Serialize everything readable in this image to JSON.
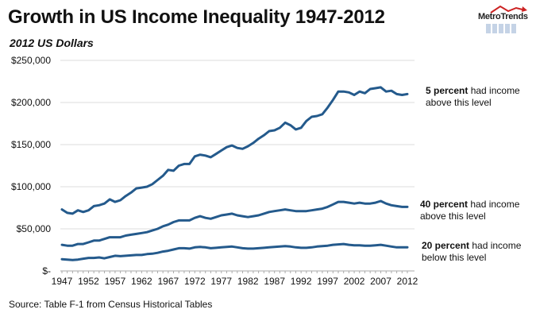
{
  "header": {
    "title": "Growth in US Income Inequality 1947-2012",
    "subtitle": "2012 US Dollars",
    "logo_text": "MetroTrends"
  },
  "footer": {
    "source": "Source: Table F-1 from Census Historical Tables"
  },
  "colors": {
    "series": "#245a8c",
    "grid": "#dddddd",
    "logo_arrow": "#cc2222",
    "logo_bars": "#c5d3e6"
  },
  "annotations": [
    {
      "bold": "5 percent",
      "rest": " had income",
      "line2": "above this level"
    },
    {
      "bold": "40 percent",
      "rest": " had income",
      "line2": "above this level"
    },
    {
      "bold": "20 percent",
      "rest": " had income",
      "line2": "below this level"
    }
  ],
  "chart_data": {
    "type": "line",
    "title": "Growth in US Income Inequality 1947-2012",
    "subtitle": "2012 US Dollars",
    "xlabel": "",
    "ylabel": "2012 US Dollars",
    "ylim": [
      0,
      250000
    ],
    "xlim": [
      1947,
      2012
    ],
    "grid": true,
    "legend": "none (inline annotations at right)",
    "y_ticks": [
      0,
      50000,
      100000,
      150000,
      200000,
      250000
    ],
    "y_tick_labels": [
      "$-",
      "$50,000",
      "$100,000",
      "$150,000",
      "$200,000",
      "$250,000"
    ],
    "x_ticks": [
      1947,
      1952,
      1957,
      1962,
      1967,
      1972,
      1977,
      1982,
      1987,
      1992,
      1997,
      2002,
      2007,
      2012
    ],
    "x_tick_labels": [
      "1947",
      "1952",
      "1957",
      "1962",
      "1967",
      "1972",
      "1977",
      "1982",
      "1987",
      "1992",
      "1997",
      "2002",
      "2007",
      "2012"
    ],
    "x": [
      1947,
      1948,
      1949,
      1950,
      1951,
      1952,
      1953,
      1954,
      1955,
      1956,
      1957,
      1958,
      1959,
      1960,
      1961,
      1962,
      1963,
      1964,
      1965,
      1966,
      1967,
      1968,
      1969,
      1970,
      1971,
      1972,
      1973,
      1974,
      1975,
      1976,
      1977,
      1978,
      1979,
      1980,
      1981,
      1982,
      1983,
      1984,
      1985,
      1986,
      1987,
      1988,
      1989,
      1990,
      1991,
      1992,
      1993,
      1994,
      1995,
      1996,
      1997,
      1998,
      1999,
      2000,
      2001,
      2002,
      2003,
      2004,
      2005,
      2006,
      2007,
      2008,
      2009,
      2010,
      2011,
      2012
    ],
    "series": [
      {
        "name": "Top 5 percent (had income above this level)",
        "values": [
          73000,
          69000,
          68000,
          72000,
          70000,
          72000,
          77000,
          78000,
          80000,
          85000,
          82000,
          84000,
          89000,
          93000,
          98000,
          99000,
          100000,
          103000,
          108000,
          113000,
          120000,
          119000,
          125000,
          127000,
          127000,
          136000,
          138000,
          137000,
          135000,
          139000,
          143000,
          147000,
          149000,
          146000,
          145000,
          148000,
          152000,
          157000,
          161000,
          166000,
          167000,
          170000,
          176000,
          173000,
          168000,
          170000,
          178000,
          183000,
          184000,
          186000,
          194000,
          203000,
          213000,
          213000,
          212000,
          209000,
          213000,
          211000,
          216000,
          217000,
          218000,
          213000,
          214000,
          210000,
          209000,
          210000
        ]
      },
      {
        "name": "Top 40 percent (had income above this level)",
        "values": [
          31000,
          30000,
          30000,
          32000,
          32000,
          34000,
          36000,
          36000,
          38000,
          40000,
          40000,
          40000,
          42000,
          43000,
          44000,
          45000,
          46000,
          48000,
          50000,
          53000,
          55000,
          58000,
          60000,
          60000,
          60000,
          63000,
          65000,
          63000,
          62000,
          64000,
          66000,
          67000,
          68000,
          66000,
          65000,
          64000,
          65000,
          66000,
          68000,
          70000,
          71000,
          72000,
          73000,
          72000,
          71000,
          71000,
          71000,
          72000,
          73000,
          74000,
          76000,
          79000,
          82000,
          82000,
          81000,
          80000,
          81000,
          80000,
          80000,
          81000,
          83000,
          80000,
          78000,
          77000,
          76000,
          76000
        ]
      },
      {
        "name": "Bottom 20 percent (had income below this level)",
        "values": [
          14000,
          13500,
          13000,
          13500,
          14500,
          15500,
          15500,
          16000,
          15000,
          16500,
          18000,
          17500,
          18000,
          18500,
          19000,
          19000,
          20000,
          20500,
          21500,
          23000,
          24000,
          25500,
          27000,
          27000,
          26500,
          28000,
          28500,
          28000,
          27000,
          27500,
          28000,
          28500,
          29000,
          28000,
          27000,
          26500,
          26500,
          27000,
          27500,
          28000,
          28500,
          29000,
          29500,
          29000,
          28000,
          27500,
          27500,
          28000,
          29000,
          29500,
          30000,
          31000,
          31500,
          32000,
          31000,
          30500,
          30500,
          30000,
          30000,
          30500,
          31000,
          30000,
          29000,
          28000,
          28000,
          28000
        ]
      }
    ]
  }
}
